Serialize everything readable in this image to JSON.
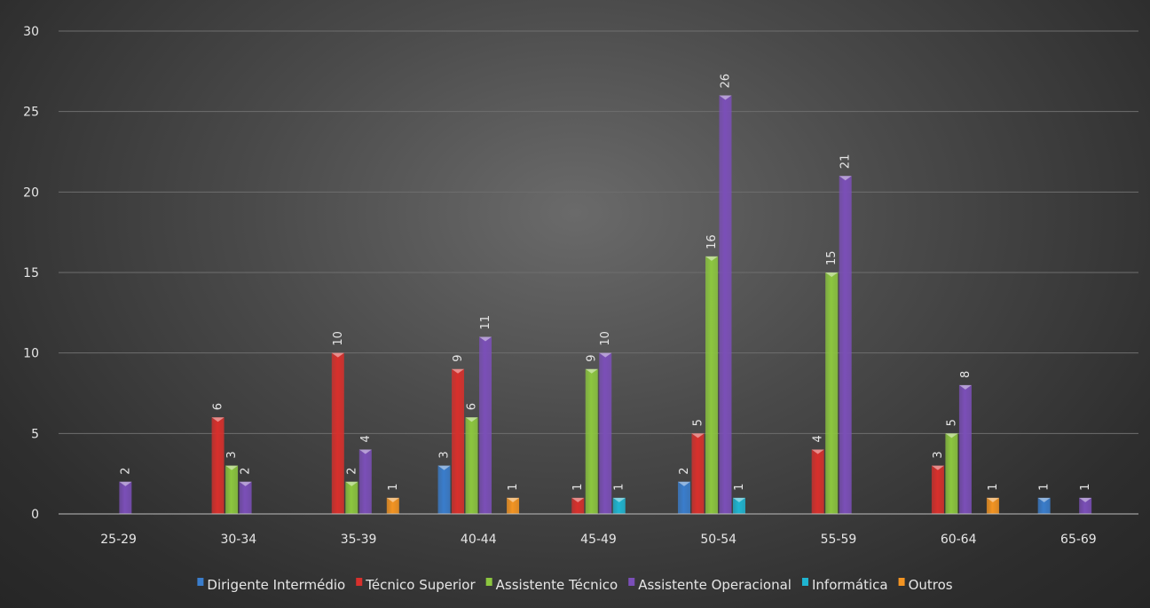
{
  "chart_data": {
    "type": "bar",
    "title": "",
    "xlabel": "",
    "ylabel": "",
    "ylim": [
      0,
      30
    ],
    "yticks": [
      0,
      5,
      10,
      15,
      20,
      25,
      30
    ],
    "grid": true,
    "legend_position": "bottom",
    "data_labels": true,
    "categories": [
      "25-29",
      "30-34",
      "35-39",
      "40-44",
      "45-49",
      "50-54",
      "55-59",
      "60-64",
      "65-69"
    ],
    "series": [
      {
        "name": "Dirigente Intermédio",
        "color": "#3a7dcc",
        "values": [
          null,
          null,
          null,
          3,
          null,
          2,
          null,
          null,
          1
        ]
      },
      {
        "name": "Técnico Superior",
        "color": "#d8302c",
        "values": [
          null,
          6,
          10,
          9,
          1,
          5,
          4,
          3,
          null
        ]
      },
      {
        "name": "Assistente Técnico",
        "color": "#8cc63f",
        "values": [
          null,
          3,
          2,
          6,
          9,
          16,
          15,
          5,
          null
        ]
      },
      {
        "name": "Assistente Operacional",
        "color": "#7b4fb8",
        "values": [
          2,
          2,
          4,
          11,
          10,
          26,
          21,
          8,
          1
        ]
      },
      {
        "name": "Informática",
        "color": "#1fb5d1",
        "values": [
          null,
          null,
          null,
          null,
          1,
          1,
          null,
          null,
          null
        ]
      },
      {
        "name": "Outros",
        "color": "#f39422",
        "values": [
          null,
          null,
          1,
          1,
          null,
          null,
          null,
          1,
          null
        ]
      }
    ]
  }
}
